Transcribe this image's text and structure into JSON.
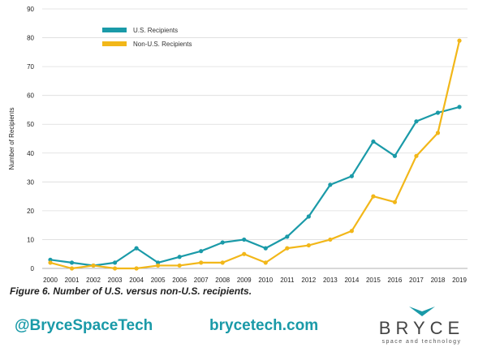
{
  "chart_data": {
    "type": "line",
    "title": "",
    "xlabel": "",
    "ylabel": "Number of Recipients",
    "ylim": [
      0,
      90
    ],
    "yticks": [
      0,
      10,
      20,
      30,
      40,
      50,
      60,
      70,
      80,
      90
    ],
    "grid": true,
    "legend_position": "top-left",
    "x": [
      "2000",
      "2001",
      "2002",
      "2003",
      "2004",
      "2005",
      "2006",
      "2007",
      "2008",
      "2009",
      "2010",
      "2011",
      "2012",
      "2013",
      "2014",
      "2015",
      "2016",
      "2017",
      "2018",
      "2019"
    ],
    "series": [
      {
        "name": "U.S. Recipients",
        "color": "#1a9aa8",
        "markers": true,
        "values": [
          3,
          2,
          1,
          2,
          7,
          2,
          4,
          6,
          9,
          10,
          7,
          11,
          18,
          29,
          32,
          44,
          39,
          51,
          54,
          56
        ]
      },
      {
        "name": "Non-U.S. Recipients",
        "color": "#f2b719",
        "markers": true,
        "values": [
          2,
          0,
          1,
          0,
          0,
          1,
          1,
          2,
          2,
          5,
          2,
          7,
          8,
          10,
          13,
          25,
          23,
          39,
          47,
          79
        ]
      }
    ]
  },
  "caption": "Figure 6. Number of U.S. versus non-U.S. recipients.",
  "footer": {
    "handle": "@BryceSpaceTech",
    "website": "brycetech.com",
    "brand_name": "BRYCE",
    "brand_tagline": "space and technology",
    "brand_color": "#1a9aa8"
  }
}
